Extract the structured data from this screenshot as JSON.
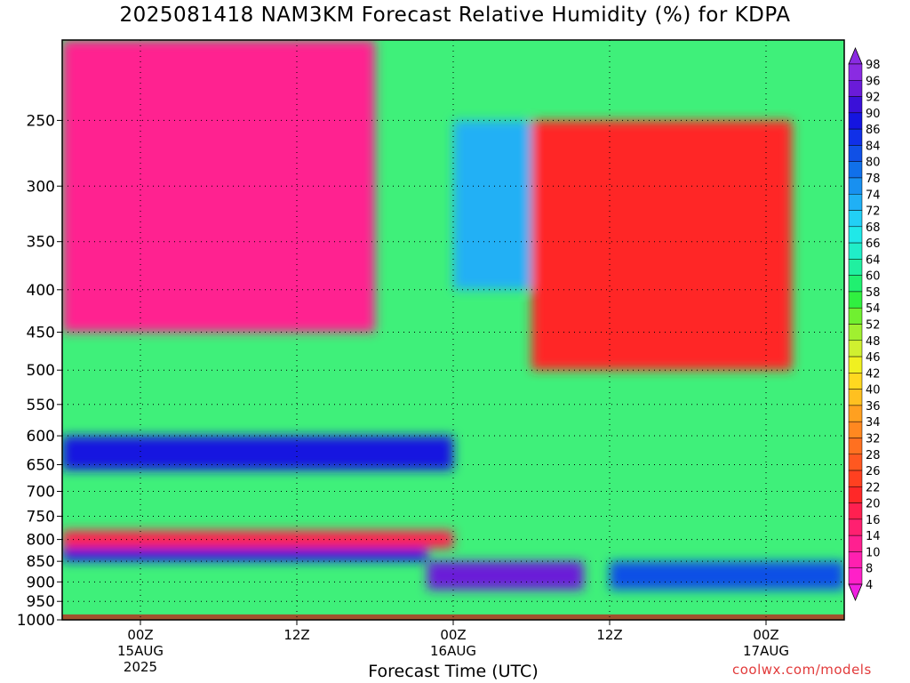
{
  "chart_data": {
    "type": "heatmap",
    "title": "2025081418 NAM3KM Forecast Relative Humidity (%) for KDPA",
    "xlabel": "Forecast Time (UTC)",
    "ylabel": "",
    "y_scale": "log",
    "y_inverted": true,
    "ylim": [
      1000,
      200
    ],
    "y_ticks": [
      250,
      300,
      350,
      400,
      450,
      500,
      550,
      600,
      650,
      700,
      750,
      800,
      850,
      900,
      950,
      1000
    ],
    "x_ticks": [
      {
        "hour": 0,
        "line1": "00Z",
        "line2": "15AUG",
        "line3": "2025"
      },
      {
        "hour": 12,
        "line1": "12Z",
        "line2": "",
        "line3": ""
      },
      {
        "hour": 24,
        "line1": "00Z",
        "line2": "16AUG",
        "line3": ""
      },
      {
        "hour": 36,
        "line1": "12Z",
        "line2": "",
        "line3": ""
      },
      {
        "hour": 48,
        "line1": "00Z",
        "line2": "17AUG",
        "line3": ""
      }
    ],
    "xlim": [
      -6,
      54
    ],
    "grid": true,
    "ground_level": 985,
    "colorbar": {
      "labels": [
        98,
        96,
        92,
        90,
        86,
        84,
        80,
        78,
        74,
        72,
        68,
        66,
        64,
        60,
        58,
        54,
        52,
        48,
        46,
        42,
        40,
        36,
        34,
        32,
        28,
        26,
        22,
        20,
        16,
        14,
        10,
        8,
        4
      ],
      "colors": [
        "#8a2be2",
        "#6a1bd8",
        "#3a10d8",
        "#1515e0",
        "#1030e8",
        "#1050e6",
        "#1070ea",
        "#1890f0",
        "#20b0f5",
        "#22d0f5",
        "#20e8e8",
        "#20eec8",
        "#20f0a0",
        "#20f070",
        "#30f040",
        "#70f030",
        "#a0f030",
        "#d0f030",
        "#f0f020",
        "#ffd820",
        "#ffc020",
        "#ffa020",
        "#ff8820",
        "#ff7020",
        "#ff5820",
        "#ff4020",
        "#ff2828",
        "#ff2050",
        "#ff2070",
        "#ff2090",
        "#ff20b0",
        "#ff20c8",
        "#f020e0"
      ]
    },
    "approx_fields": [
      {
        "hours": [
          -6,
          18
        ],
        "pressure": [
          200,
          450
        ],
        "rh": 12
      },
      {
        "hours": [
          24,
          30
        ],
        "pressure": [
          250,
          400
        ],
        "rh": 75
      },
      {
        "hours": [
          30,
          50
        ],
        "pressure": [
          250,
          500
        ],
        "rh": 22
      },
      {
        "hours": [
          -6,
          24
        ],
        "pressure": [
          600,
          660
        ],
        "rh": 88
      },
      {
        "hours": [
          -6,
          24
        ],
        "pressure": [
          780,
          820
        ],
        "rh": 20
      },
      {
        "hours": [
          -6,
          22
        ],
        "pressure": [
          820,
          850
        ],
        "rh": 88
      },
      {
        "hours": [
          22,
          34
        ],
        "pressure": [
          850,
          920
        ],
        "rh": 96
      },
      {
        "hours": [
          36,
          54
        ],
        "pressure": [
          850,
          920
        ],
        "rh": 84
      }
    ]
  },
  "credit": "coolwx.com/models"
}
